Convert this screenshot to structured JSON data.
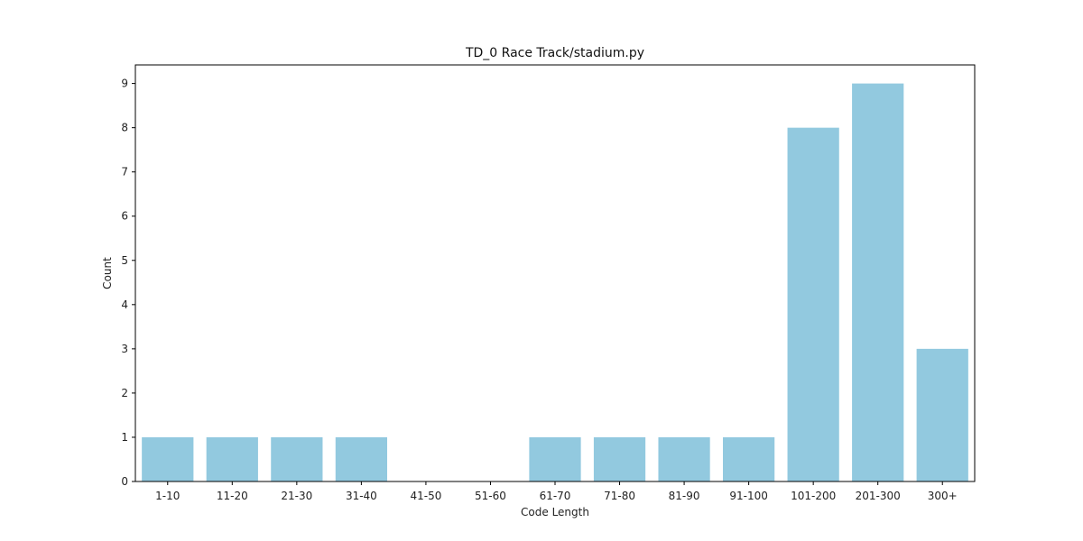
{
  "chart_data": {
    "type": "bar",
    "title": "TD_0 Race Track/stadium.py",
    "xlabel": "Code Length",
    "ylabel": "Count",
    "categories": [
      "1-10",
      "11-20",
      "21-30",
      "31-40",
      "41-50",
      "51-60",
      "61-70",
      "71-80",
      "81-90",
      "91-100",
      "101-200",
      "201-300",
      "300+"
    ],
    "values": [
      1,
      1,
      1,
      1,
      0,
      0,
      1,
      1,
      1,
      1,
      8,
      9,
      3
    ],
    "ylim": [
      0,
      9.42
    ],
    "yticks": [
      0,
      1,
      2,
      3,
      4,
      5,
      6,
      7,
      8,
      9
    ],
    "bar_color": "#92c9df",
    "grid": false,
    "legend": "none"
  }
}
